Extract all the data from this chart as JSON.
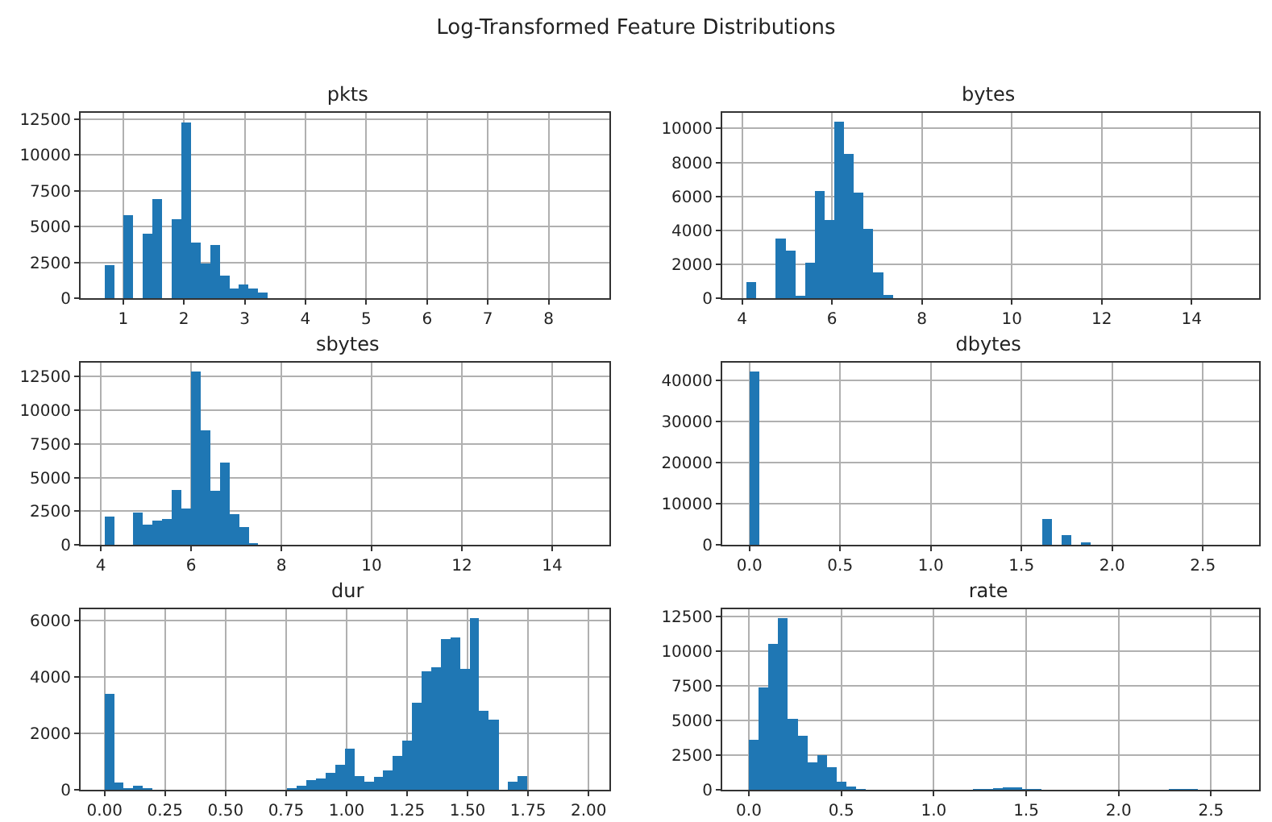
{
  "chart_data": [
    {
      "type": "histogram",
      "title": "pkts",
      "annotations": [
        "Log-Transformed Feature Distributions"
      ],
      "color": "#1f77b4",
      "grid": true,
      "bins": [
        0.693,
        0.851,
        1.009,
        1.167,
        1.325,
        1.483,
        1.641,
        1.799,
        1.957,
        2.115,
        2.273,
        2.431,
        2.589,
        2.747,
        2.905,
        3.063,
        3.221,
        3.379
      ],
      "values": [
        2300,
        0,
        5800,
        0,
        4500,
        6900,
        0,
        5500,
        12300,
        3900,
        2400,
        3700,
        1600,
        650,
        950,
        650,
        400
      ],
      "xlim": [
        0.3,
        9.0
      ],
      "xticks": [
        1,
        2,
        3,
        4,
        5,
        6,
        7,
        8
      ],
      "ylim": [
        0,
        12950
      ],
      "yticks": [
        0,
        2500,
        5000,
        7500,
        10000,
        12500
      ]
    },
    {
      "type": "histogram",
      "title": "bytes",
      "color": "#1f77b4",
      "grid": true,
      "bins": [
        4.1,
        4.317,
        4.534,
        4.751,
        4.968,
        5.185,
        5.402,
        5.619,
        5.836,
        6.053,
        6.27,
        6.487,
        6.704,
        6.921,
        7.138,
        7.355
      ],
      "values": [
        950,
        0,
        0,
        3500,
        2800,
        150,
        2100,
        6300,
        4600,
        10400,
        8500,
        6200,
        4100,
        1500,
        200
      ],
      "xlim": [
        3.56,
        15.5
      ],
      "xticks": [
        4,
        6,
        8,
        10,
        12,
        14
      ],
      "ylim": [
        0,
        10920
      ],
      "yticks": [
        0,
        2000,
        4000,
        6000,
        8000,
        10000
      ]
    },
    {
      "type": "histogram",
      "title": "sbytes",
      "color": "#1f77b4",
      "grid": true,
      "bins": [
        4.08,
        4.293,
        4.506,
        4.719,
        4.932,
        5.145,
        5.358,
        5.571,
        5.784,
        5.997,
        6.21,
        6.423,
        6.636,
        6.849,
        7.062,
        7.275,
        7.488
      ],
      "values": [
        2100,
        0,
        0,
        2400,
        1500,
        1800,
        1900,
        4100,
        2700,
        12900,
        8500,
        4000,
        6100,
        2300,
        1300,
        100
      ],
      "xlim": [
        3.55,
        15.27
      ],
      "xticks": [
        4,
        6,
        8,
        10,
        12,
        14
      ],
      "ylim": [
        0,
        13545
      ],
      "yticks": [
        0,
        2500,
        5000,
        7500,
        10000,
        12500
      ]
    },
    {
      "type": "histogram",
      "title": "dbytes",
      "color": "#1f77b4",
      "grid": true,
      "bins": [
        0,
        0.054,
        0.108,
        0.161,
        0.215,
        0.269,
        0.323,
        0.377,
        0.43,
        0.484,
        0.538,
        0.592,
        0.646,
        0.699,
        0.753,
        0.807,
        0.861,
        0.915,
        0.968,
        1.022,
        1.076,
        1.13,
        1.184,
        1.237,
        1.291,
        1.345,
        1.399,
        1.453,
        1.506,
        1.56,
        1.614,
        1.668,
        1.722,
        1.775,
        1.829,
        1.883
      ],
      "values": [
        42200,
        0,
        0,
        0,
        0,
        0,
        0,
        0,
        0,
        0,
        0,
        0,
        0,
        0,
        0,
        0,
        0,
        0,
        0,
        0,
        0,
        0,
        0,
        0,
        0,
        0,
        0,
        0,
        0,
        0,
        6200,
        0,
        2300,
        0,
        600
      ],
      "xlim": [
        -0.15,
        2.81
      ],
      "xticks": [
        {
          "value": 0,
          "label": "0.0"
        },
        {
          "value": 0.5,
          "label": "0.5"
        },
        {
          "value": 1,
          "label": "1.0"
        },
        {
          "value": 1.5,
          "label": "1.5"
        },
        {
          "value": 2,
          "label": "2.0"
        },
        {
          "value": 2.5,
          "label": "2.5"
        }
      ],
      "ylim": [
        0,
        44310
      ],
      "yticks": [
        0,
        10000,
        20000,
        30000,
        40000
      ]
    },
    {
      "type": "histogram",
      "title": "dur",
      "color": "#1f77b4",
      "grid": true,
      "bins": [
        0,
        0.04,
        0.079,
        0.119,
        0.159,
        0.199,
        0.238,
        0.278,
        0.318,
        0.357,
        0.397,
        0.437,
        0.476,
        0.516,
        0.556,
        0.596,
        0.635,
        0.675,
        0.715,
        0.754,
        0.794,
        0.834,
        0.873,
        0.913,
        0.953,
        0.993,
        1.032,
        1.072,
        1.112,
        1.151,
        1.191,
        1.231,
        1.27,
        1.31,
        1.35,
        1.39,
        1.429,
        1.469,
        1.509,
        1.548,
        1.588,
        1.628,
        1.667,
        1.707,
        1.747
      ],
      "values": [
        3400,
        250,
        50,
        150,
        50,
        0,
        0,
        0,
        0,
        0,
        0,
        0,
        0,
        0,
        0,
        0,
        0,
        0,
        0,
        50,
        150,
        350,
        400,
        600,
        900,
        1450,
        500,
        300,
        450,
        700,
        1200,
        1750,
        3100,
        4200,
        4350,
        5350,
        5400,
        4300,
        6100,
        2800,
        2500,
        0,
        300,
        500
      ],
      "xlim": [
        -0.099,
        2.086
      ],
      "xticks": [
        {
          "value": 0,
          "label": "0.00"
        },
        {
          "value": 0.25,
          "label": "0.25"
        },
        {
          "value": 0.5,
          "label": "0.50"
        },
        {
          "value": 0.75,
          "label": "0.75"
        },
        {
          "value": 1,
          "label": "1.00"
        },
        {
          "value": 1.25,
          "label": "1.25"
        },
        {
          "value": 1.5,
          "label": "1.50"
        },
        {
          "value": 1.75,
          "label": "1.75"
        },
        {
          "value": 2,
          "label": "2.00"
        }
      ],
      "ylim": [
        0,
        6405
      ],
      "yticks": [
        0,
        2000,
        4000,
        6000
      ]
    },
    {
      "type": "histogram",
      "title": "rate",
      "color": "#1f77b4",
      "grid": true,
      "bins": [
        0,
        0.053,
        0.106,
        0.158,
        0.211,
        0.264,
        0.317,
        0.37,
        0.422,
        0.475,
        0.528,
        0.581,
        0.634,
        0.686,
        0.739,
        0.792,
        0.845,
        0.898,
        0.95,
        1.003,
        1.056,
        1.109,
        1.162,
        1.214,
        1.267,
        1.32,
        1.373,
        1.426,
        1.478,
        1.531,
        1.584,
        1.637,
        1.69,
        1.742,
        1.795,
        1.848,
        1.901,
        1.954,
        2.006,
        2.059,
        2.112,
        2.165,
        2.218,
        2.27,
        2.323,
        2.376,
        2.429
      ],
      "values": [
        3600,
        7400,
        10500,
        12400,
        5100,
        3900,
        2000,
        2500,
        1600,
        600,
        250,
        30,
        0,
        0,
        0,
        0,
        0,
        0,
        0,
        0,
        0,
        0,
        0,
        50,
        80,
        100,
        150,
        150,
        80,
        60,
        0,
        0,
        0,
        0,
        0,
        0,
        0,
        0,
        0,
        0,
        0,
        0,
        0,
        80,
        80,
        80
      ],
      "xlim": [
        -0.144,
        2.76
      ],
      "xticks": [
        {
          "value": 0,
          "label": "0.0"
        },
        {
          "value": 0.5,
          "label": "0.5"
        },
        {
          "value": 1,
          "label": "1.0"
        },
        {
          "value": 1.5,
          "label": "1.5"
        },
        {
          "value": 2,
          "label": "2.0"
        },
        {
          "value": 2.5,
          "label": "2.5"
        }
      ],
      "ylim": [
        0,
        13020
      ],
      "yticks": [
        0,
        2500,
        5000,
        7500,
        10000,
        12500
      ]
    }
  ]
}
